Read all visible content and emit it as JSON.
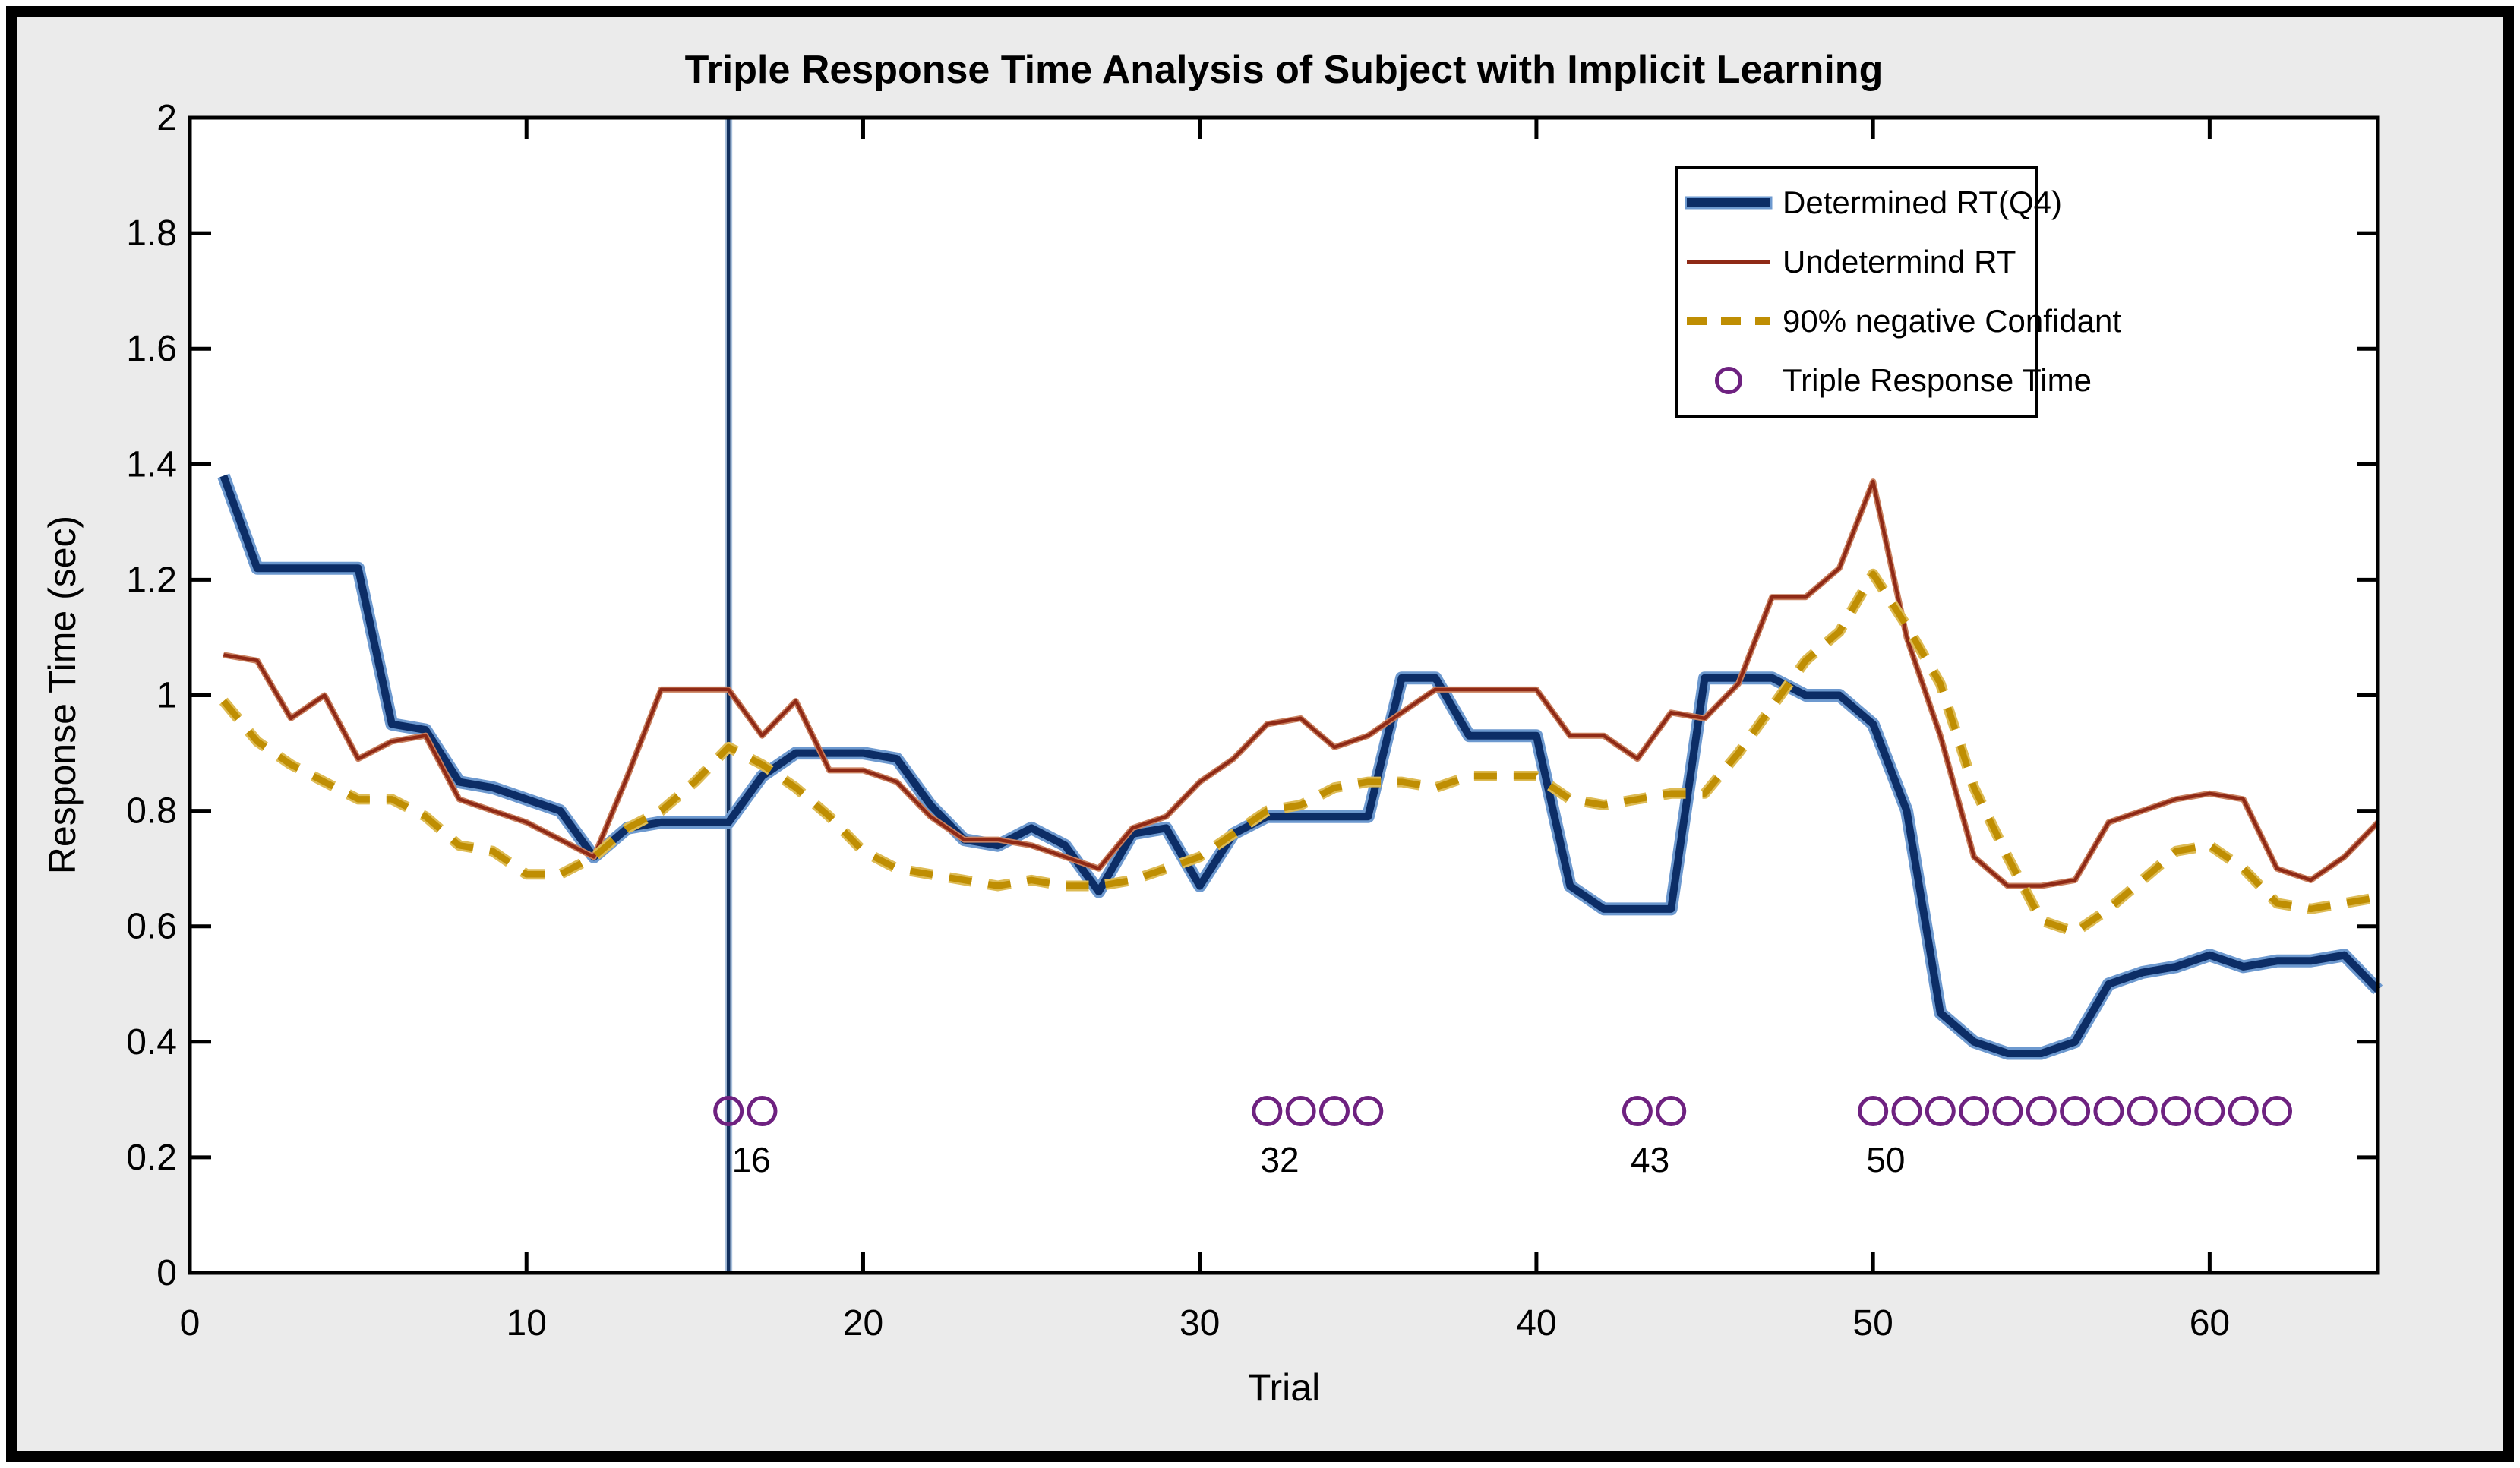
{
  "figure": {
    "background_color": "#ebebeb",
    "border_color": "#000000",
    "plot_background": "#ffffff"
  },
  "chart_data": {
    "type": "line",
    "title": "Triple Response Time Analysis of Subject with Implicit Learning",
    "xlabel": "Trial",
    "ylabel": "Response Time (sec)",
    "xlim": [
      0,
      65
    ],
    "ylim": [
      0,
      2
    ],
    "grid": false,
    "legend_position": "top-right",
    "xticks": {
      "values": [
        0,
        10,
        20,
        30,
        40,
        50,
        60
      ],
      "labels": [
        "0",
        "10",
        "20",
        "30",
        "40",
        "50",
        "60"
      ]
    },
    "yticks": {
      "values": [
        0,
        0.2,
        0.4,
        0.6,
        0.8,
        1,
        1.2,
        1.4,
        1.6,
        1.8,
        2
      ],
      "labels": [
        "0",
        "0.2",
        "0.4",
        "0.6",
        "0.8",
        "1",
        "1.2",
        "1.4",
        "1.6",
        "1.8",
        "2"
      ]
    },
    "x": [
      1,
      2,
      3,
      4,
      5,
      6,
      7,
      8,
      9,
      10,
      11,
      12,
      13,
      14,
      15,
      16,
      17,
      18,
      19,
      20,
      21,
      22,
      23,
      24,
      25,
      26,
      27,
      28,
      29,
      30,
      31,
      32,
      33,
      34,
      35,
      36,
      37,
      38,
      39,
      40,
      41,
      42,
      43,
      44,
      45,
      46,
      47,
      48,
      49,
      50,
      51,
      52,
      53,
      54,
      55,
      56,
      57,
      58,
      59,
      60,
      61,
      62,
      63,
      64,
      65
    ],
    "series": [
      {
        "name": "Determined RT(Q4)",
        "slug": "determined-rt-q4",
        "style": "solid-thick",
        "color": "#0c2d66",
        "halo": "#6d99cf",
        "values": [
          1.38,
          1.22,
          1.22,
          1.22,
          1.22,
          0.95,
          0.94,
          0.85,
          0.84,
          0.82,
          0.8,
          0.72,
          0.77,
          0.78,
          0.78,
          0.78,
          0.86,
          0.9,
          0.9,
          0.9,
          0.89,
          0.81,
          0.75,
          0.74,
          0.77,
          0.74,
          0.66,
          0.76,
          0.77,
          0.67,
          0.76,
          0.79,
          0.79,
          0.79,
          0.79,
          1.03,
          1.03,
          0.93,
          0.93,
          0.93,
          0.67,
          0.63,
          0.63,
          0.63,
          1.03,
          1.03,
          1.03,
          1.0,
          1.0,
          0.95,
          0.8,
          0.45,
          0.4,
          0.38,
          0.38,
          0.4,
          0.5,
          0.52,
          0.53,
          0.55,
          0.53,
          0.54,
          0.54,
          0.55,
          0.49
        ]
      },
      {
        "name": "Undetermind RT",
        "slug": "undetermind-rt",
        "style": "solid-thin",
        "color": "#8f2a16",
        "halo": "#c9805f",
        "values": [
          1.07,
          1.06,
          0.96,
          1.0,
          0.89,
          0.92,
          0.93,
          0.82,
          0.8,
          0.78,
          0.75,
          0.72,
          0.86,
          1.01,
          1.01,
          1.01,
          0.93,
          0.99,
          0.87,
          0.87,
          0.85,
          0.79,
          0.75,
          0.75,
          0.74,
          0.72,
          0.7,
          0.77,
          0.79,
          0.85,
          0.89,
          0.95,
          0.96,
          0.91,
          0.93,
          0.97,
          1.01,
          1.01,
          1.01,
          1.01,
          0.93,
          0.93,
          0.89,
          0.97,
          0.96,
          1.02,
          1.17,
          1.17,
          1.22,
          1.37,
          1.1,
          0.93,
          0.72,
          0.67,
          0.67,
          0.68,
          0.78,
          0.8,
          0.82,
          0.83,
          0.82,
          0.7,
          0.68,
          0.72,
          0.78
        ]
      },
      {
        "name": "90% negative Confidant",
        "slug": "negative-confidant",
        "style": "dashed",
        "color": "#bf8e03",
        "halo": "#ddbb55",
        "values": [
          0.99,
          0.92,
          0.88,
          0.85,
          0.82,
          0.82,
          0.79,
          0.74,
          0.73,
          0.69,
          0.69,
          0.72,
          0.77,
          0.8,
          0.85,
          0.91,
          0.88,
          0.84,
          0.79,
          0.73,
          0.7,
          0.69,
          0.68,
          0.67,
          0.68,
          0.67,
          0.67,
          0.68,
          0.7,
          0.72,
          0.76,
          0.8,
          0.81,
          0.84,
          0.85,
          0.85,
          0.84,
          0.86,
          0.86,
          0.86,
          0.82,
          0.81,
          0.82,
          0.83,
          0.83,
          0.9,
          0.98,
          1.06,
          1.11,
          1.21,
          1.12,
          1.02,
          0.84,
          0.72,
          0.61,
          0.59,
          0.63,
          0.68,
          0.73,
          0.74,
          0.7,
          0.64,
          0.63,
          0.64,
          0.65
        ]
      },
      {
        "name": "Triple Response Time",
        "slug": "triple-response-time",
        "style": "circles",
        "color": "#6e2180",
        "marker_y": 0.28,
        "trials": [
          16,
          17,
          32,
          33,
          34,
          35,
          43,
          44,
          50,
          51,
          52,
          53,
          54,
          55,
          56,
          57,
          58,
          59,
          60,
          61,
          62
        ]
      }
    ],
    "vline": {
      "x": 16,
      "color": "#12305e",
      "halo": "#a8c0dc"
    },
    "annotations": [
      {
        "label": "16",
        "x": 16.1,
        "y": 0.175
      },
      {
        "label": "32",
        "x": 31.8,
        "y": 0.175
      },
      {
        "label": "43",
        "x": 42.8,
        "y": 0.175
      },
      {
        "label": "50",
        "x": 49.8,
        "y": 0.175
      }
    ]
  }
}
